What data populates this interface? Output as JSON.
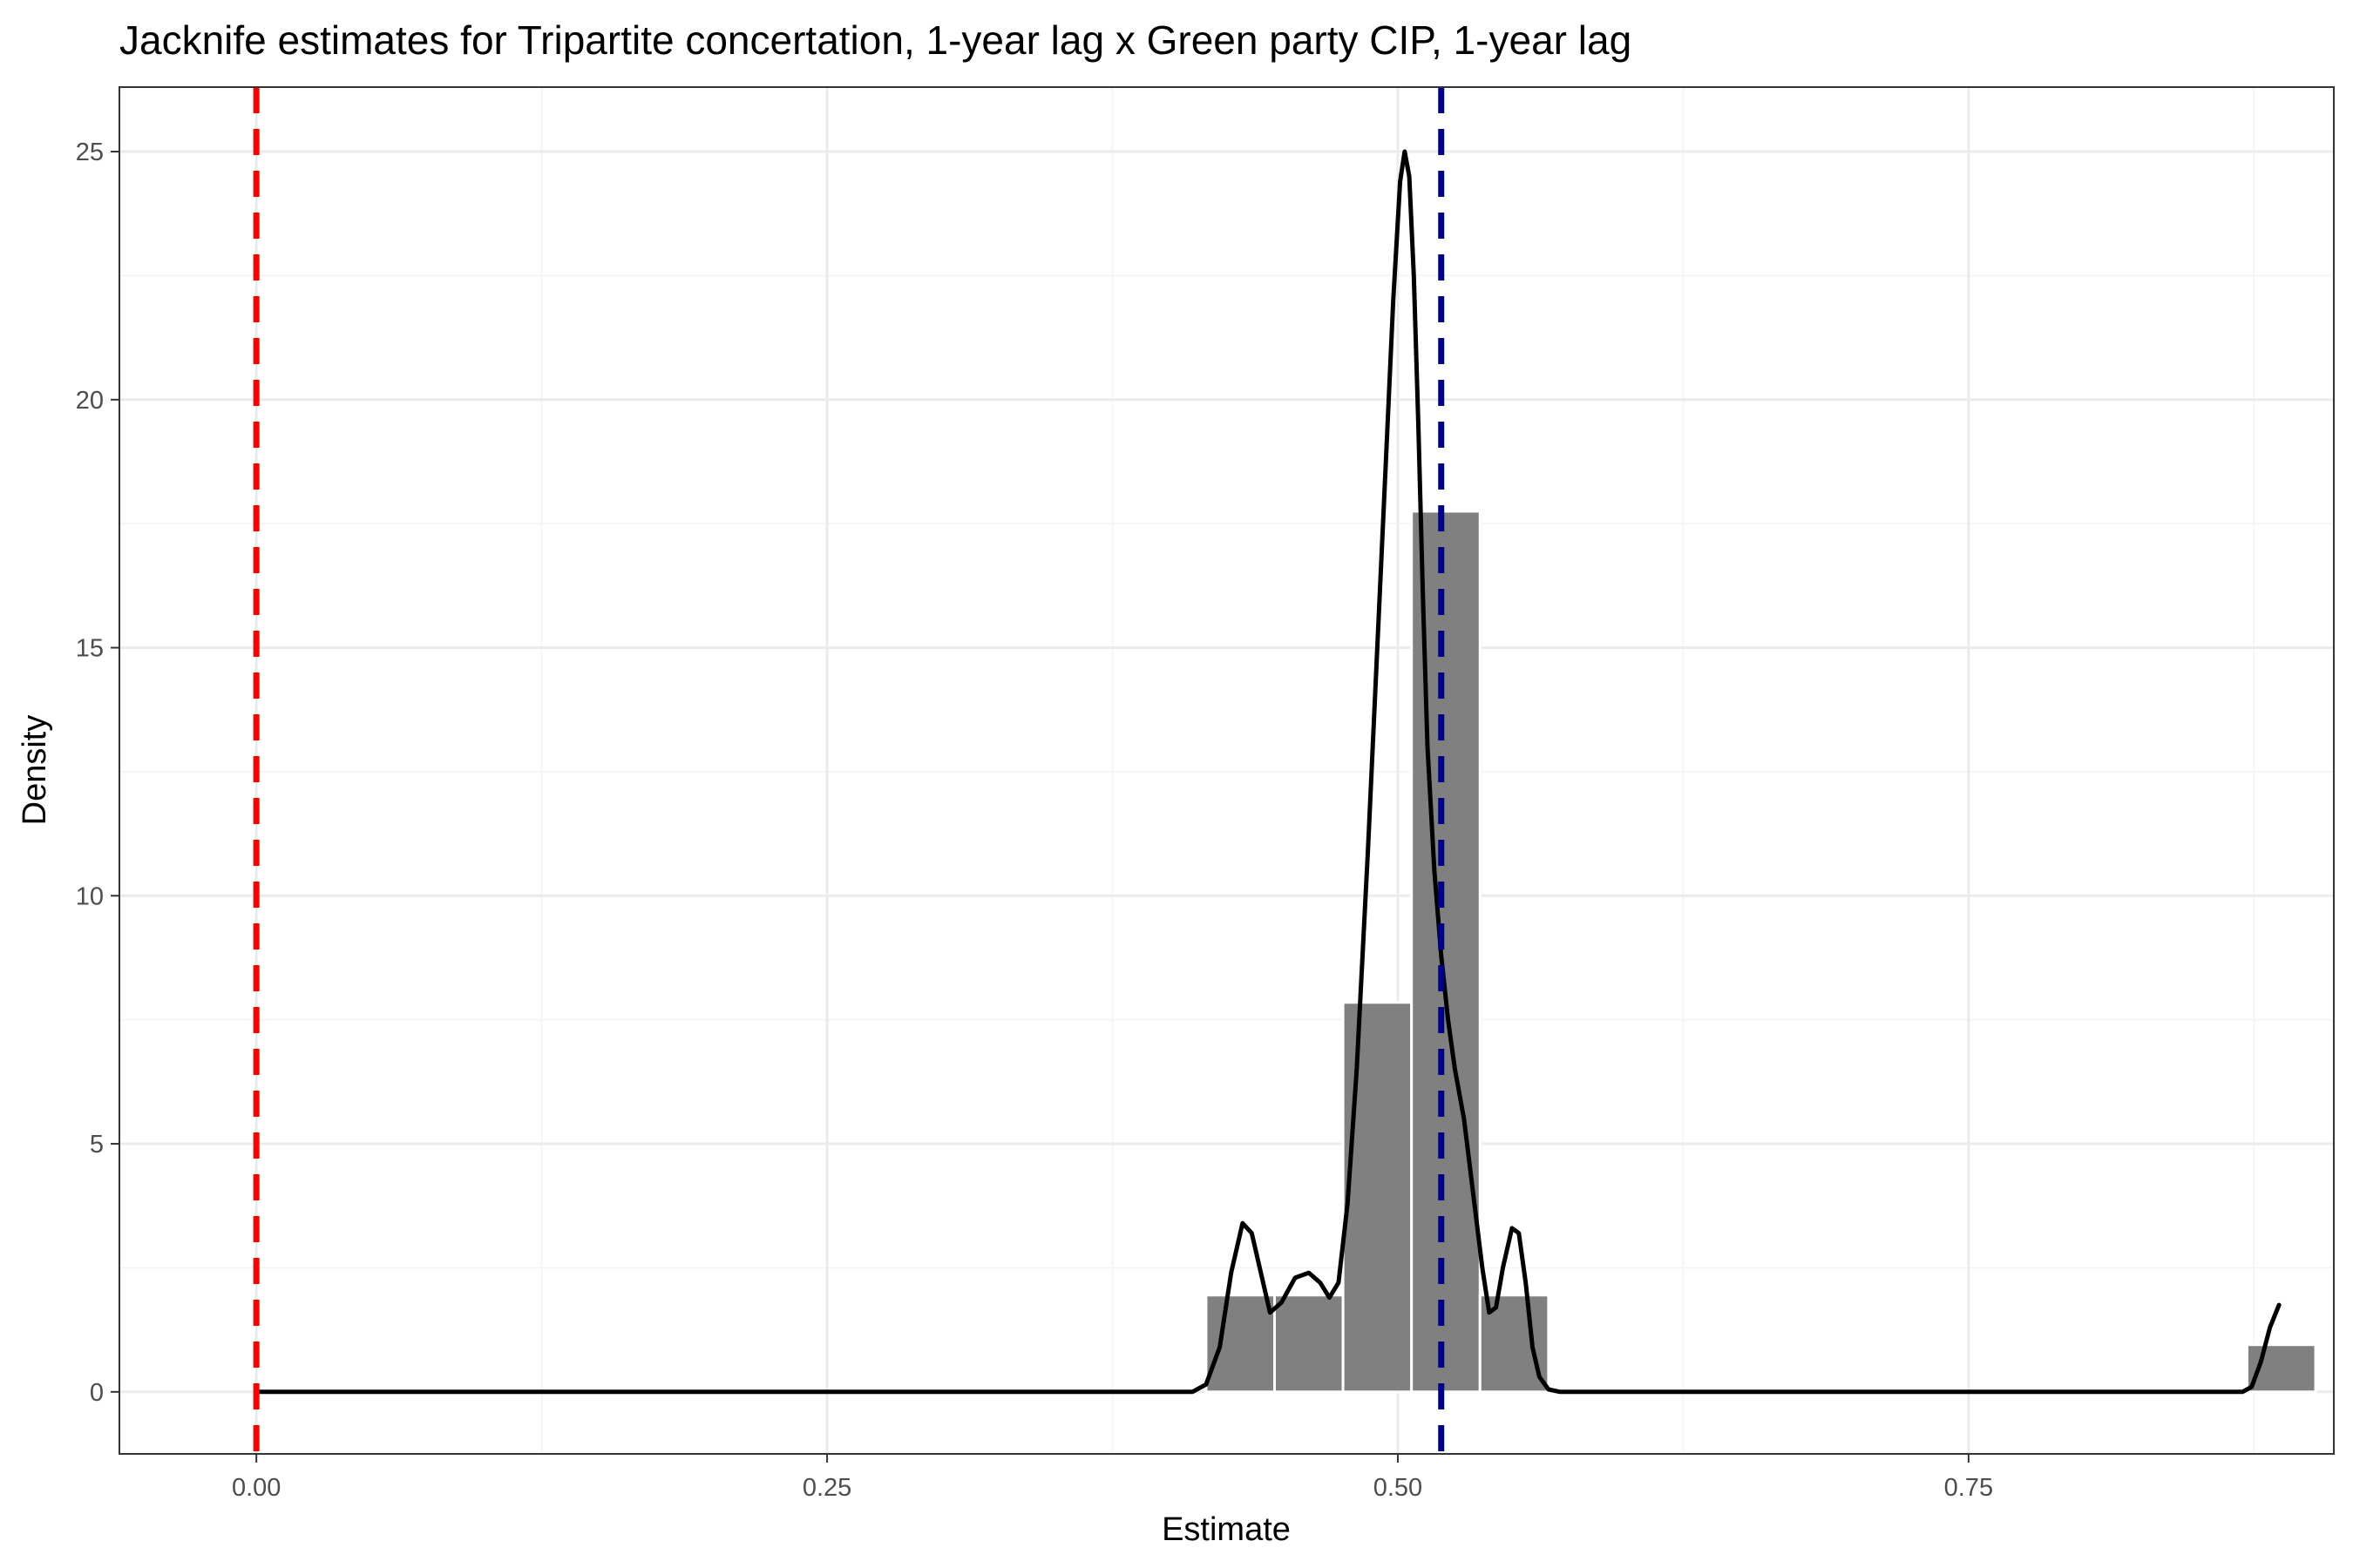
{
  "chart_data": {
    "type": "histogram",
    "title": "Jacknife estimates for Tripartite concertation, 1-year lag x Green party CIP, 1-year lag",
    "xlabel": "Estimate",
    "ylabel": "Density",
    "xlim": [
      -0.06,
      0.91
    ],
    "ylim": [
      -1.25,
      26.3
    ],
    "x_ticks": [
      0.0,
      0.25,
      0.5,
      0.75
    ],
    "x_tick_labels": [
      "0.00",
      "0.25",
      "0.50",
      "0.75"
    ],
    "y_ticks": [
      0,
      5,
      10,
      15,
      20,
      25
    ],
    "y_tick_labels": [
      "0",
      "5",
      "10",
      "15",
      "20",
      "25"
    ],
    "grid": true,
    "histogram_bins": [
      {
        "x0": 0.416,
        "x1": 0.446,
        "density": 1.95
      },
      {
        "x0": 0.446,
        "x1": 0.476,
        "density": 1.95
      },
      {
        "x0": 0.476,
        "x1": 0.506,
        "density": 7.85
      },
      {
        "x0": 0.506,
        "x1": 0.536,
        "density": 17.75
      },
      {
        "x0": 0.536,
        "x1": 0.566,
        "density": 1.95
      },
      {
        "x0": 0.872,
        "x1": 0.902,
        "density": 0.95
      }
    ],
    "density_curve": {
      "x": [
        0.0,
        0.41,
        0.416,
        0.422,
        0.427,
        0.432,
        0.436,
        0.44,
        0.444,
        0.449,
        0.455,
        0.461,
        0.466,
        0.47,
        0.474,
        0.478,
        0.482,
        0.487,
        0.491,
        0.495,
        0.498,
        0.501,
        0.503,
        0.505,
        0.507,
        0.509,
        0.511,
        0.513,
        0.516,
        0.519,
        0.522,
        0.525,
        0.529,
        0.533,
        0.537,
        0.54,
        0.543,
        0.546,
        0.55,
        0.553,
        0.556,
        0.559,
        0.562,
        0.566,
        0.571,
        0.578,
        0.59,
        0.87,
        0.874,
        0.878,
        0.882,
        0.886
      ],
      "y": [
        0,
        0,
        0.15,
        0.9,
        2.4,
        3.4,
        3.2,
        2.4,
        1.6,
        1.8,
        2.3,
        2.4,
        2.2,
        1.9,
        2.2,
        3.8,
        6.5,
        11.0,
        15.0,
        19.0,
        22.0,
        24.4,
        25.0,
        24.5,
        22.5,
        19.5,
        16.0,
        13.0,
        10.5,
        8.8,
        7.5,
        6.5,
        5.5,
        4.0,
        2.5,
        1.6,
        1.7,
        2.5,
        3.3,
        3.2,
        2.2,
        0.9,
        0.3,
        0.05,
        0,
        0,
        0,
        0,
        0.1,
        0.6,
        1.3,
        1.75
      ]
    },
    "reference_lines": [
      {
        "x": 0.0,
        "color": "#ff0000",
        "style": "dashed"
      },
      {
        "x": 0.519,
        "color": "#00008b",
        "style": "dashed"
      }
    ],
    "colors": {
      "bars": "#808080",
      "bar_edge": "#ffffff",
      "curve": "#000000",
      "panel_border": "#333333",
      "major_grid": "#ebebeb",
      "minor_grid": "#f5f5f5"
    }
  }
}
